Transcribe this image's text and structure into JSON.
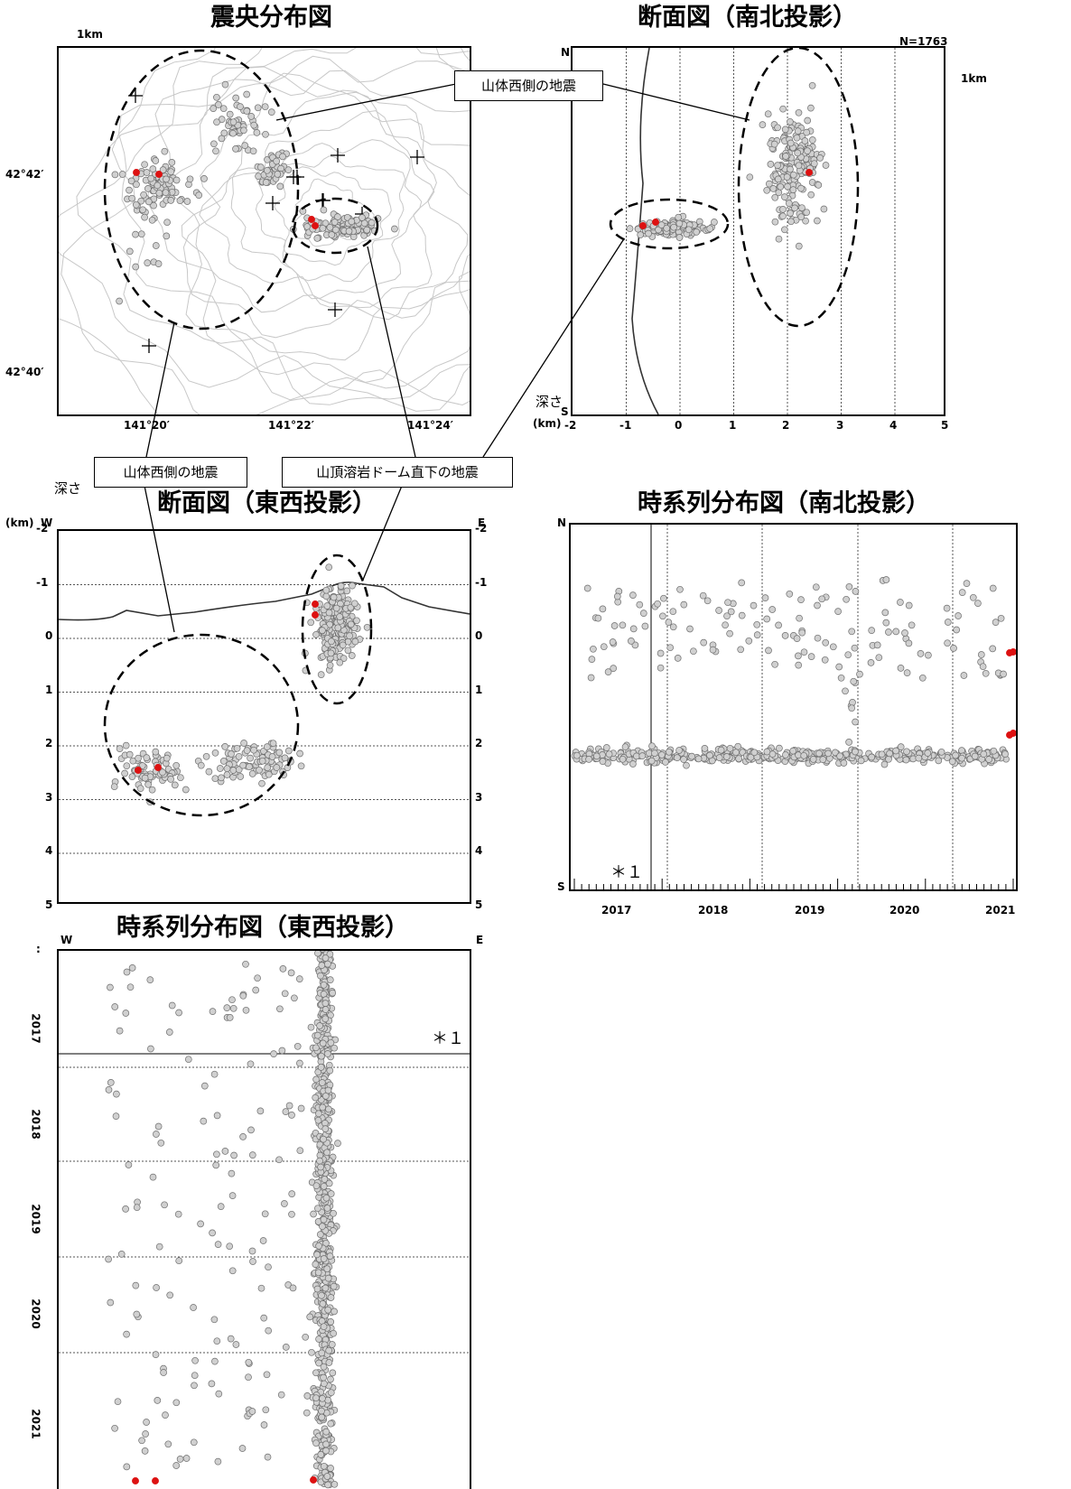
{
  "titles": {
    "epicenter": "震央分布図",
    "ns_section": "断面図（南北投影）",
    "ew_section": "断面図（東西投影）",
    "ts_ns": "時系列分布図（南北投影）",
    "ts_ew": "時系列分布図（東西投影）"
  },
  "callouts": {
    "west_top": "山体西側の地震",
    "west_bottom": "山体西側の地震",
    "summit": "山頂溶岩ドーム直下の地震"
  },
  "map": {
    "scale_label": "1km",
    "lat_labels": [
      "42°42′",
      "42°40′"
    ],
    "lon_labels": [
      "141°20′",
      "141°22′",
      "141°24′"
    ]
  },
  "ns_section": {
    "count_label": "N=1763",
    "scale_label": "1km",
    "north": "N",
    "south": "S",
    "depth_label": "深さ",
    "unit": "(km)",
    "ticks": [
      "-2",
      "-1",
      "0",
      "1",
      "2",
      "3",
      "4",
      "5"
    ]
  },
  "ew_section": {
    "depth_label": "深さ",
    "unit": "(km)",
    "west": "W",
    "east": "E",
    "depth_ticks": [
      "-2",
      "-1",
      "0",
      "1",
      "2",
      "3",
      "4",
      "5"
    ]
  },
  "ts_ns": {
    "north": "N",
    "south": "S",
    "years": [
      "2017",
      "2018",
      "2019",
      "2020",
      "2021"
    ],
    "note": "＊１"
  },
  "ts_ew": {
    "west": "W",
    "east": "E",
    "years": [
      "2017",
      "2018",
      "2019",
      "2020",
      "2021"
    ],
    "note": "＊１",
    "corner": ":"
  },
  "colors": {
    "quake_fill": "#d0d0d0",
    "quake_stroke": "#6e6e6e",
    "recent_event": "#dd1111",
    "contour": "#c8c8c8"
  },
  "chart_data": [
    {
      "type": "scatter",
      "title": "震央分布図",
      "xlabel": "",
      "ylabel": "",
      "x_ticks": [
        "141°20′",
        "141°22′",
        "141°24′"
      ],
      "y_ticks": [
        "42°42′",
        "42°40′"
      ],
      "clusters": [
        {
          "name": "山体西側の地震",
          "center_lon": 141.327,
          "center_lat": 42.699
        },
        {
          "name": "山頂溶岩ドーム直下の地震",
          "center_lon": 141.377,
          "center_lat": 42.69
        }
      ]
    },
    {
      "type": "scatter",
      "title": "断面図（南北投影）",
      "xlabel": "深さ (km)",
      "xlim": [
        -2,
        5
      ],
      "count": 1763,
      "clusters": [
        {
          "name": "山頂溶岩ドーム直下の地震",
          "depth_range": [
            -0.9,
            0.6
          ]
        },
        {
          "name": "山体西側の地震",
          "depth_range": [
            1.6,
            3.0
          ]
        }
      ]
    },
    {
      "type": "scatter",
      "title": "断面図（東西投影）",
      "ylabel": "深さ (km)",
      "ylim": [
        -2,
        5
      ],
      "clusters": [
        {
          "name": "山体西側の地震",
          "depth_range": [
            1.7,
            2.8
          ]
        },
        {
          "name": "山頂溶岩ドーム直下の地震",
          "depth_range": [
            -0.8,
            0.7
          ]
        }
      ]
    },
    {
      "type": "scatter",
      "title": "時系列分布図（南北投影）",
      "x_ticks": [
        "2017",
        "2018",
        "2019",
        "2020",
        "2021"
      ]
    },
    {
      "type": "scatter",
      "title": "時系列分布図（東西投影）",
      "y_ticks": [
        "2017",
        "2018",
        "2019",
        "2020",
        "2021"
      ]
    }
  ]
}
